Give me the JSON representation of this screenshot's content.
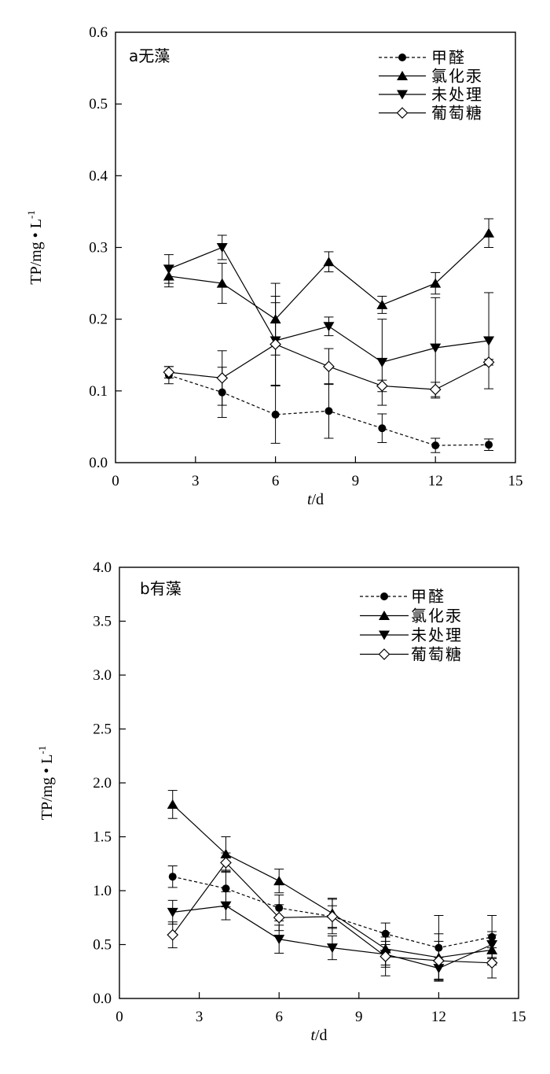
{
  "chart_data": [
    {
      "type": "line",
      "panel_label": "a无藻",
      "xlabel_italic": "t",
      "xlabel_rest": "/d",
      "ylabel": "TP/mg • L",
      "ylabel_sup": "-1",
      "xlim": [
        0,
        15
      ],
      "ylim": [
        0,
        0.6
      ],
      "xticks": [
        "0",
        "3",
        "6",
        "9",
        "12",
        "15"
      ],
      "yticks": [
        "0.0",
        "0.1",
        "0.2",
        "0.3",
        "0.4",
        "0.5",
        "0.6"
      ],
      "grid": false,
      "legend_position": "top-right",
      "x": [
        2,
        4,
        6,
        8,
        10,
        12,
        14
      ],
      "series": [
        {
          "name": "甲醛",
          "marker": "circle",
          "dashed": true,
          "values": [
            0.122,
            0.098,
            0.067,
            0.072,
            0.048,
            0.024,
            0.025
          ],
          "errors": [
            0.012,
            0.035,
            0.04,
            0.038,
            0.02,
            0.01,
            0.008
          ]
        },
        {
          "name": "氯化汞",
          "marker": "triangle-up",
          "dashed": false,
          "values": [
            0.26,
            0.25,
            0.2,
            0.28,
            0.22,
            0.25,
            0.32
          ],
          "errors": [
            0.015,
            0.028,
            0.05,
            0.014,
            0.012,
            0.015,
            0.02
          ]
        },
        {
          "name": "未处理",
          "marker": "triangle-down",
          "dashed": false,
          "values": [
            0.27,
            0.3,
            0.17,
            0.19,
            0.14,
            0.16,
            0.17
          ],
          "errors": [
            0.02,
            0.017,
            0.062,
            0.013,
            0.06,
            0.07,
            0.067
          ]
        },
        {
          "name": "葡萄糖",
          "marker": "diamond-open",
          "dashed": false,
          "values": [
            0.126,
            0.118,
            0.165,
            0.134,
            0.107,
            0.102,
            0.14
          ],
          "errors": [
            0.008,
            0.038,
            0.058,
            0.025,
            0.008,
            0.01,
            0.004
          ]
        }
      ]
    },
    {
      "type": "line",
      "panel_label": "b有藻",
      "xlabel_italic": "t",
      "xlabel_rest": "/d",
      "ylabel": "TP/mg • L",
      "ylabel_sup": "-1",
      "xlim": [
        0,
        15
      ],
      "ylim": [
        0,
        4.0
      ],
      "xticks": [
        "0",
        "3",
        "6",
        "9",
        "12",
        "15"
      ],
      "yticks": [
        "0.0",
        "0.5",
        "1.0",
        "1.5",
        "2.0",
        "2.5",
        "3.0",
        "3.5",
        "4.0"
      ],
      "grid": false,
      "legend_position": "top-right",
      "x": [
        2,
        4,
        6,
        8,
        10,
        12,
        14
      ],
      "series": [
        {
          "name": "甲醛",
          "marker": "circle",
          "dashed": true,
          "values": [
            1.13,
            1.02,
            0.84,
            0.76,
            0.6,
            0.47,
            0.57
          ],
          "errors": [
            0.1,
            0.17,
            0.12,
            0.16,
            0.1,
            0.3,
            0.2
          ]
        },
        {
          "name": "氯化汞",
          "marker": "triangle-up",
          "dashed": false,
          "values": [
            1.8,
            1.34,
            1.09,
            0.79,
            0.46,
            0.38,
            0.45
          ],
          "errors": [
            0.13,
            0.16,
            0.11,
            0.14,
            0.15,
            0.22,
            0.14
          ]
        },
        {
          "name": "未处理",
          "marker": "triangle-down",
          "dashed": false,
          "values": [
            0.8,
            0.86,
            0.55,
            0.47,
            0.41,
            0.28,
            0.5
          ],
          "errors": [
            0.11,
            0.13,
            0.13,
            0.11,
            0.12,
            0.1,
            0.12
          ]
        },
        {
          "name": "葡萄糖",
          "marker": "diamond-open",
          "dashed": false,
          "values": [
            0.59,
            1.26,
            0.75,
            0.76,
            0.39,
            0.35,
            0.33
          ],
          "errors": [
            0.12,
            0.09,
            0.12,
            0.1,
            0.18,
            0.18,
            0.14
          ]
        }
      ]
    }
  ]
}
